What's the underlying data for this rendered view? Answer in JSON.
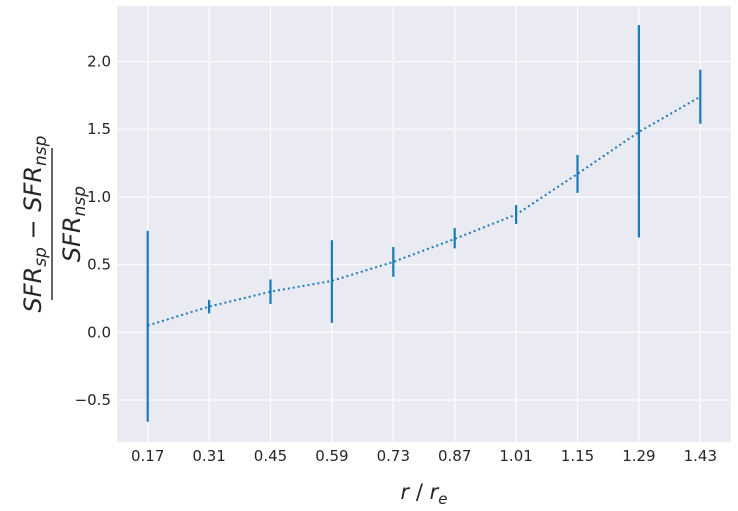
{
  "chart_data": {
    "type": "line",
    "style": "errorbar with dotted line, seaborn darkgrid",
    "x": [
      0.17,
      0.31,
      0.45,
      0.59,
      0.73,
      0.87,
      1.01,
      1.15,
      1.29,
      1.43
    ],
    "x_tick_labels": [
      "0.17",
      "0.31",
      "0.45",
      "0.59",
      "0.73",
      "0.87",
      "1.01",
      "1.15",
      "1.29",
      "1.43"
    ],
    "series": [
      {
        "y": [
          0.05,
          0.19,
          0.3,
          0.38,
          0.52,
          0.69,
          0.87,
          1.17,
          1.48,
          1.74
        ],
        "yerr_low": [
          -0.66,
          0.14,
          0.21,
          0.07,
          0.41,
          0.62,
          0.8,
          1.03,
          0.7,
          1.54
        ],
        "yerr_high": [
          0.75,
          0.24,
          0.39,
          0.68,
          0.63,
          0.77,
          0.94,
          1.31,
          2.27,
          1.94
        ],
        "color": "#1a7bba"
      }
    ],
    "xlim": [
      0.1,
      1.5
    ],
    "ylim": [
      -0.81,
      2.41
    ],
    "y_ticks": [
      -0.5,
      0.0,
      0.5,
      1.0,
      1.5,
      2.0
    ],
    "y_tick_labels": [
      "−0.5",
      "0.0",
      "0.5",
      "1.0",
      "1.5",
      "2.0"
    ],
    "xlabel": {
      "r": "r",
      "slash": " / ",
      "re_base": "r",
      "re_sub": "e"
    },
    "ylabel": {
      "numerator": {
        "a": "SFR",
        "a_sub": "sp",
        "minus": " − ",
        "b": "SFR",
        "b_sub": "nsp"
      },
      "denominator": {
        "b": "SFR",
        "b_sub": "nsp"
      }
    },
    "grid": true,
    "colors": {
      "background": "#e9eaf2",
      "grid": "#ffffff",
      "series": "#1a7bba"
    }
  }
}
